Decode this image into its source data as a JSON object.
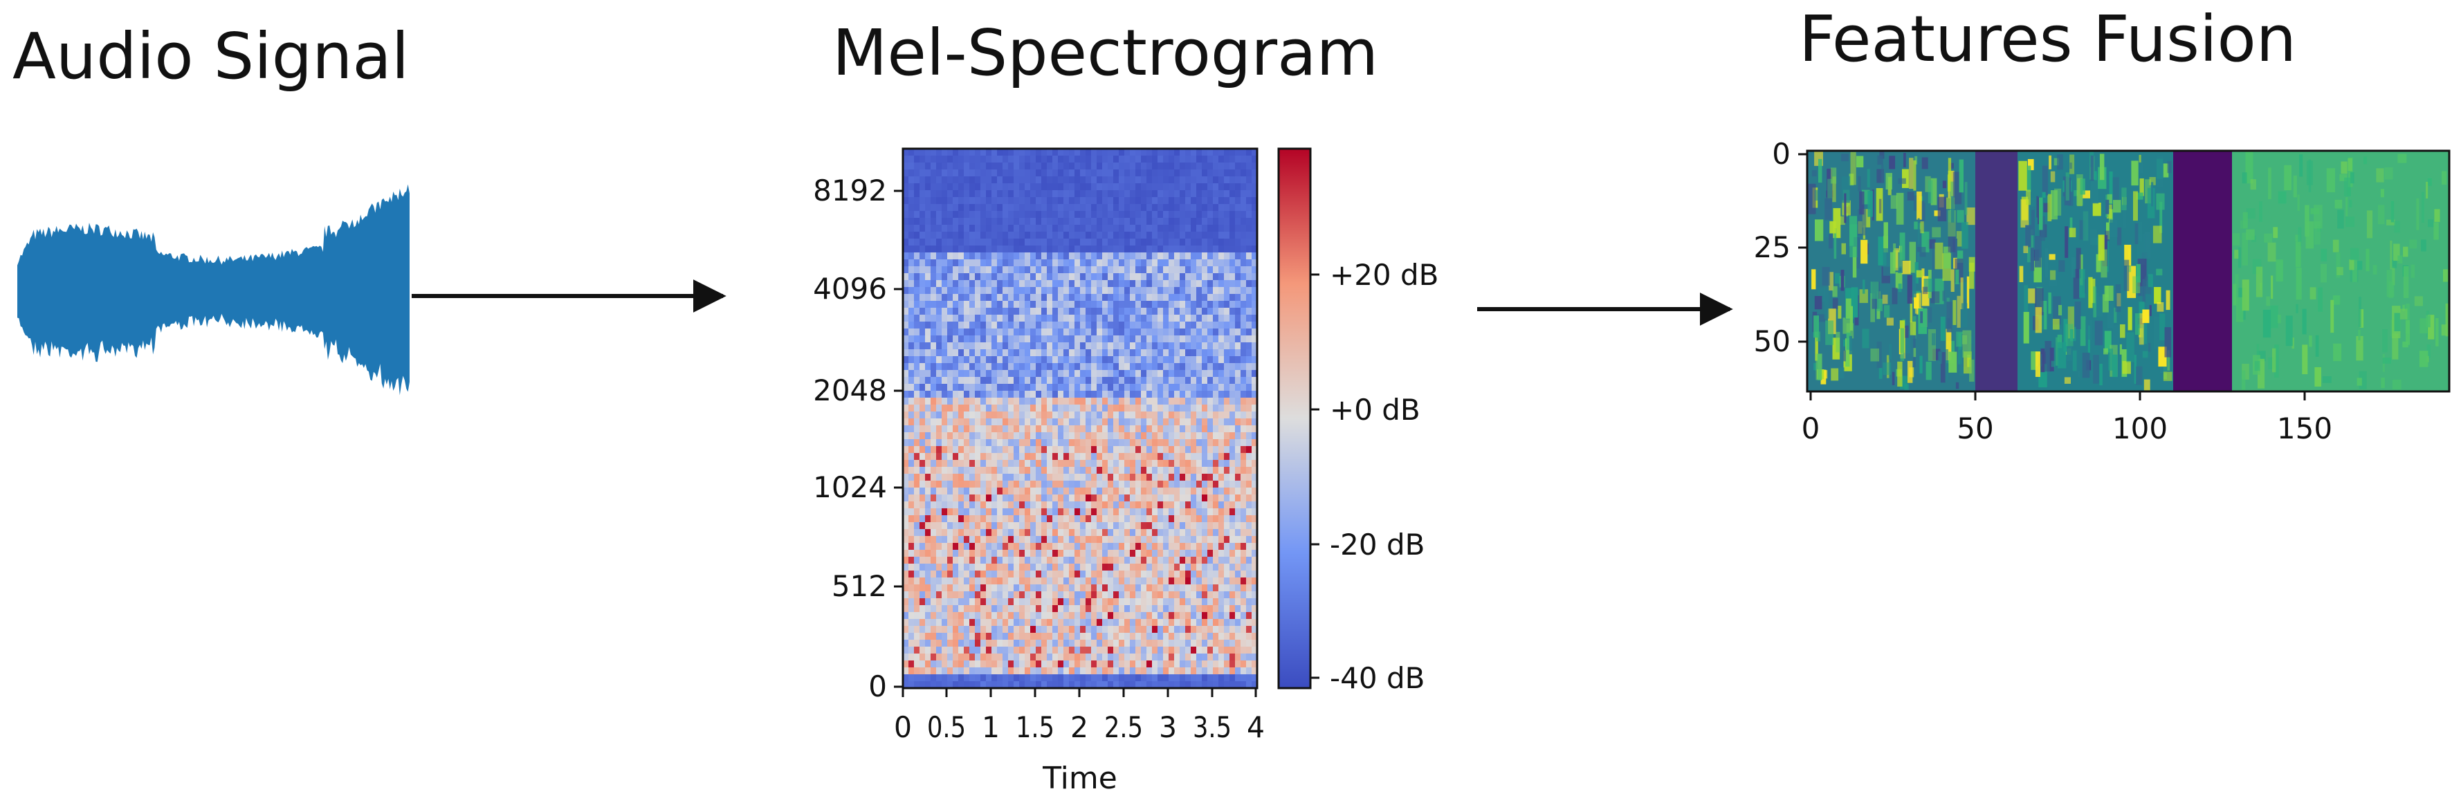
{
  "panels": {
    "audio": {
      "title": "Audio Signal"
    },
    "mel": {
      "title": "Mel-Spectrogram",
      "y_ticks": [
        "8192",
        "4096",
        "2048",
        "1024",
        "512",
        "0"
      ],
      "x_ticks": [
        "0",
        "0.5",
        "1",
        "1.5",
        "2",
        "2.5",
        "3",
        "3.5",
        "4"
      ],
      "x_label": "Time",
      "colorbar_ticks": [
        "+20 dB",
        "+0 dB",
        "-20 dB",
        "-40 dB"
      ]
    },
    "fusion": {
      "title": "Features Fusion",
      "y_ticks": [
        "0",
        "25",
        "50"
      ],
      "x_ticks": [
        "0",
        "50",
        "100",
        "150"
      ]
    }
  },
  "colors": {
    "waveform": "#1f77b4",
    "arrow": "#111111",
    "spec_low": "#3b4cc0",
    "spec_mid": "#dddddd",
    "spec_high": "#b40426",
    "viridis_dark": "#440154",
    "viridis_mid": "#21918c",
    "viridis_light": "#fde725"
  }
}
